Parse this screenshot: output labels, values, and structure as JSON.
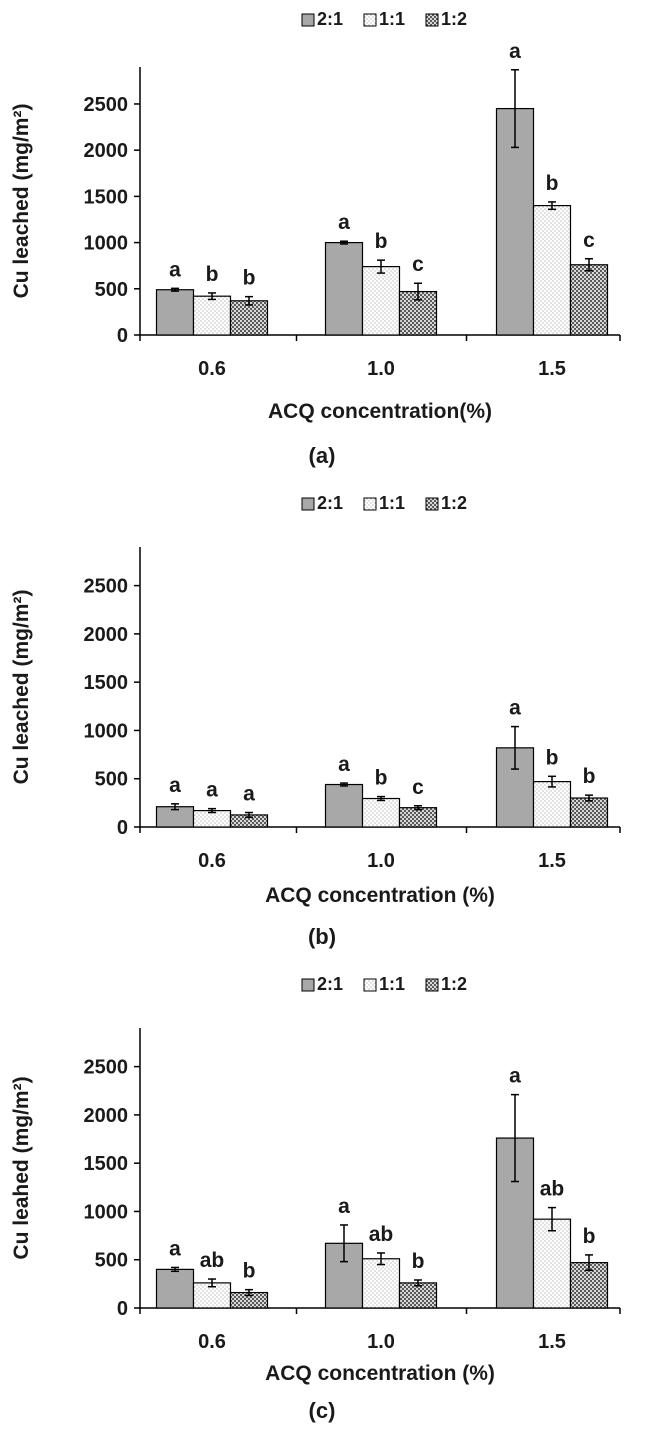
{
  "chart_data": [
    {
      "type": "bar",
      "panel_label": "(a)",
      "legend": [
        "2:1",
        "1:1",
        "1:2"
      ],
      "categories": [
        "0.6",
        "1.0",
        "1.5"
      ],
      "xlabel": "ACQ concentration(%)",
      "ylabel": "Cu leached (mg/m²)",
      "ylim": [
        0,
        2500
      ],
      "yticks": [
        "0",
        "500",
        "1000",
        "1500",
        "2000",
        "2500"
      ],
      "series": [
        {
          "name": "2:1",
          "values": [
            490,
            1000,
            2450
          ],
          "errors": [
            15,
            15,
            420
          ],
          "labels": [
            "a",
            "a",
            "a"
          ]
        },
        {
          "name": "1:1",
          "values": [
            420,
            740,
            1400
          ],
          "errors": [
            35,
            70,
            40
          ],
          "labels": [
            "b",
            "b",
            "b"
          ]
        },
        {
          "name": "1:2",
          "values": [
            370,
            470,
            760
          ],
          "errors": [
            45,
            90,
            65
          ],
          "labels": [
            "b",
            "c",
            "c"
          ]
        }
      ]
    },
    {
      "type": "bar",
      "panel_label": "(b)",
      "legend": [
        "2:1",
        "1:1",
        "1:2"
      ],
      "categories": [
        "0.6",
        "1.0",
        "1.5"
      ],
      "xlabel": "ACQ concentration (%)",
      "ylabel": "Cu leached (mg/m²)",
      "ylim": [
        0,
        2500
      ],
      "yticks": [
        "0",
        "500",
        "1000",
        "1500",
        "2000",
        "2500"
      ],
      "series": [
        {
          "name": "2:1",
          "values": [
            210,
            440,
            820
          ],
          "errors": [
            30,
            15,
            220
          ],
          "labels": [
            "a",
            "a",
            "a"
          ]
        },
        {
          "name": "1:1",
          "values": [
            170,
            295,
            470
          ],
          "errors": [
            20,
            20,
            55
          ],
          "labels": [
            "a",
            "b",
            "b"
          ]
        },
        {
          "name": "1:2",
          "values": [
            125,
            200,
            300
          ],
          "errors": [
            25,
            20,
            30
          ],
          "labels": [
            "a",
            "c",
            "b"
          ]
        }
      ]
    },
    {
      "type": "bar",
      "panel_label": "(c)",
      "legend": [
        "2:1",
        "1:1",
        "1:2"
      ],
      "categories": [
        "0.6",
        "1.0",
        "1.5"
      ],
      "xlabel": "ACQ concentration (%)",
      "ylabel": "Cu leahed (mg/m²)",
      "ylim": [
        0,
        2500
      ],
      "yticks": [
        "0",
        "500",
        "1000",
        "1500",
        "2000",
        "2500"
      ],
      "series": [
        {
          "name": "2:1",
          "values": [
            400,
            670,
            1760
          ],
          "errors": [
            20,
            190,
            450
          ],
          "labels": [
            "a",
            "a",
            "a"
          ]
        },
        {
          "name": "1:1",
          "values": [
            260,
            510,
            920
          ],
          "errors": [
            40,
            60,
            120
          ],
          "labels": [
            "ab",
            "ab",
            "ab"
          ]
        },
        {
          "name": "1:2",
          "values": [
            160,
            260,
            470
          ],
          "errors": [
            30,
            30,
            80
          ],
          "labels": [
            "b",
            "b",
            "b"
          ]
        }
      ]
    }
  ]
}
